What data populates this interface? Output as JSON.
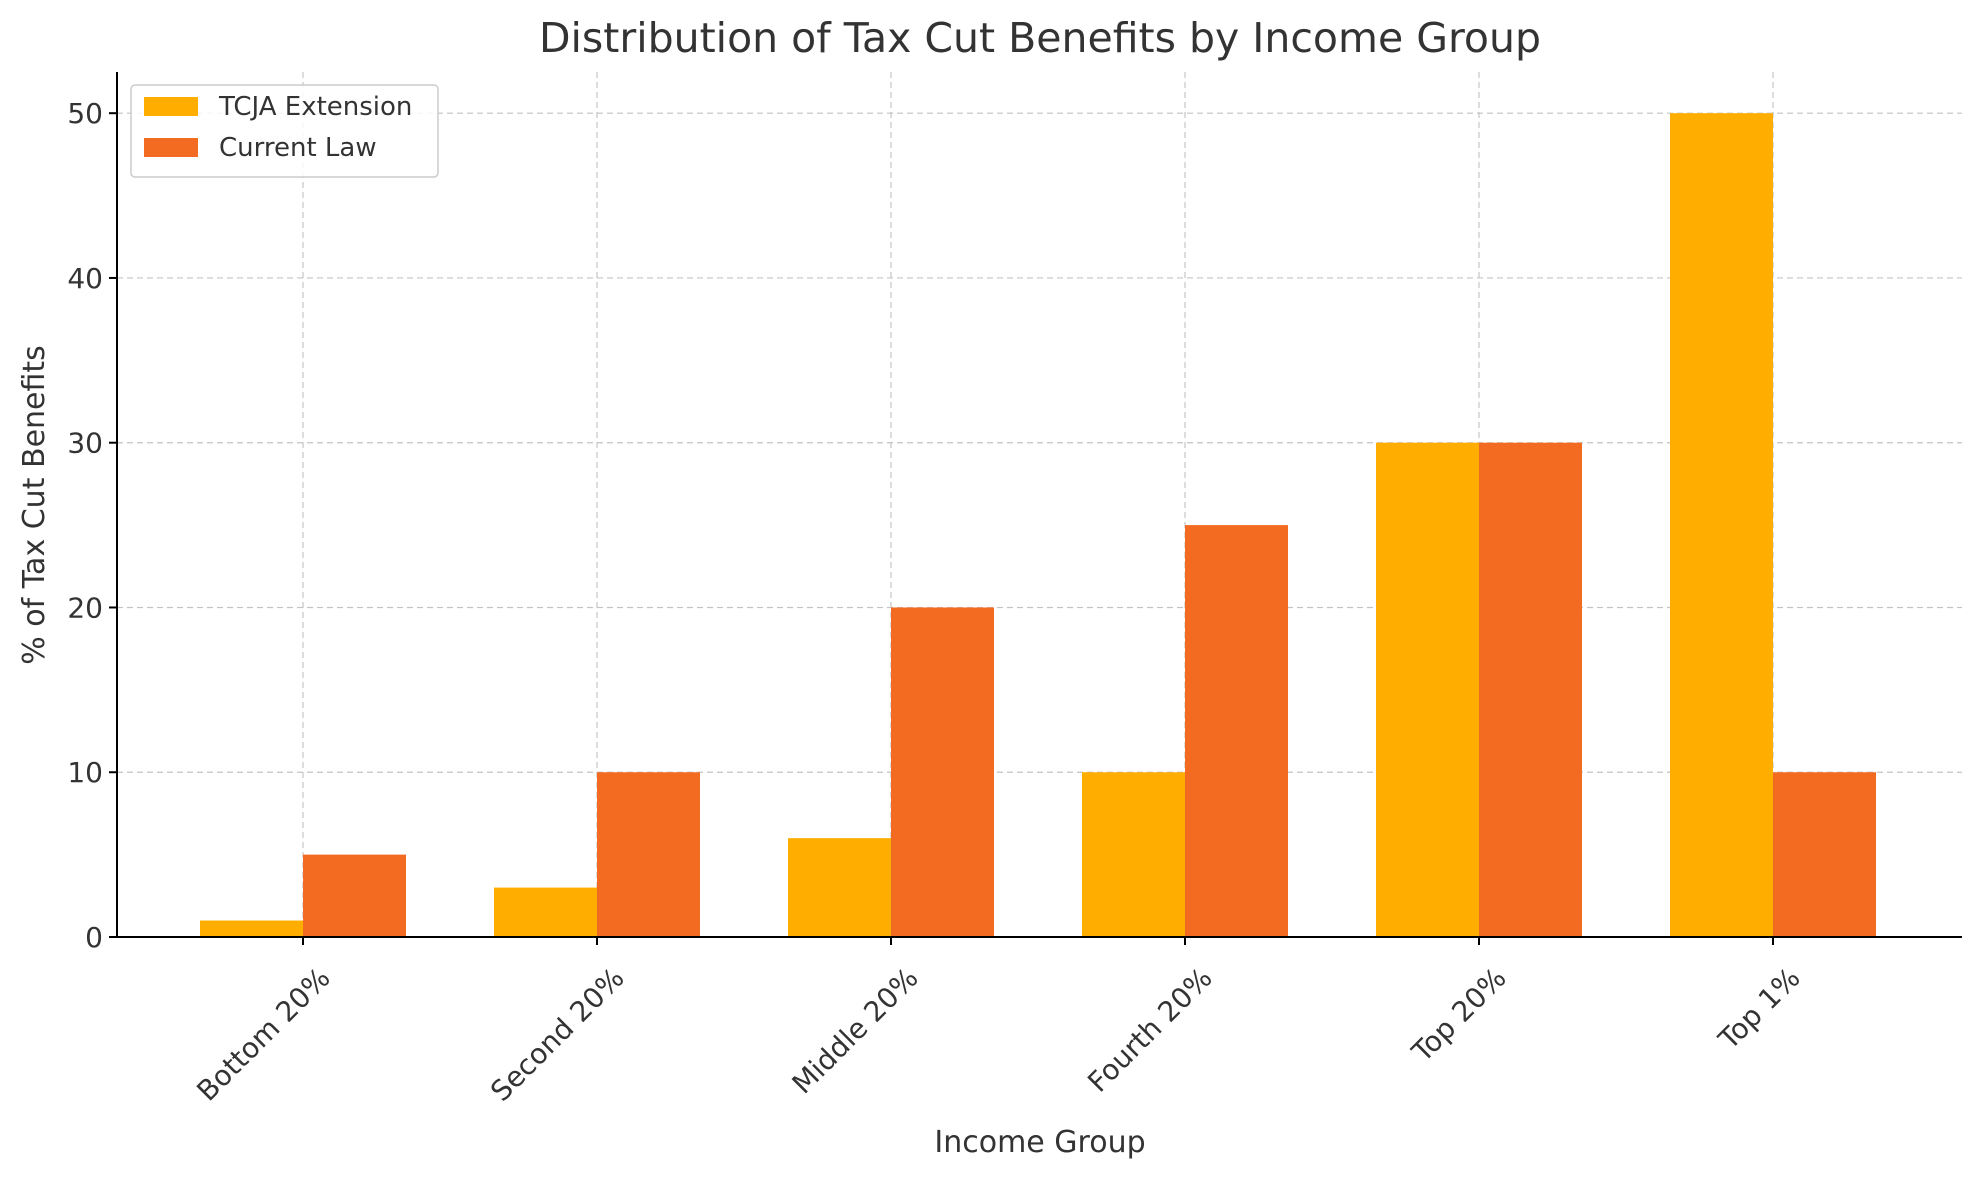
{
  "chart_data": {
    "type": "bar",
    "title": "Distribution of Tax Cut Benefits by Income Group",
    "xlabel": "Income Group",
    "ylabel": "% of Tax Cut Benefits",
    "categories": [
      "Bottom 20%",
      "Second 20%",
      "Middle 20%",
      "Fourth 20%",
      "Top 20%",
      "Top 1%"
    ],
    "series": [
      {
        "name": "TCJA Extension",
        "color": "#FFAE00",
        "values": [
          1,
          3,
          6,
          10,
          30,
          50
        ]
      },
      {
        "name": "Current Law",
        "color": "#F26B21",
        "values": [
          5,
          10,
          20,
          25,
          30,
          10
        ]
      }
    ],
    "ylim": [
      0,
      52.5
    ],
    "yticks": [
      0,
      10,
      20,
      30,
      40,
      50
    ],
    "grid": true,
    "legend_position": "top-left"
  }
}
